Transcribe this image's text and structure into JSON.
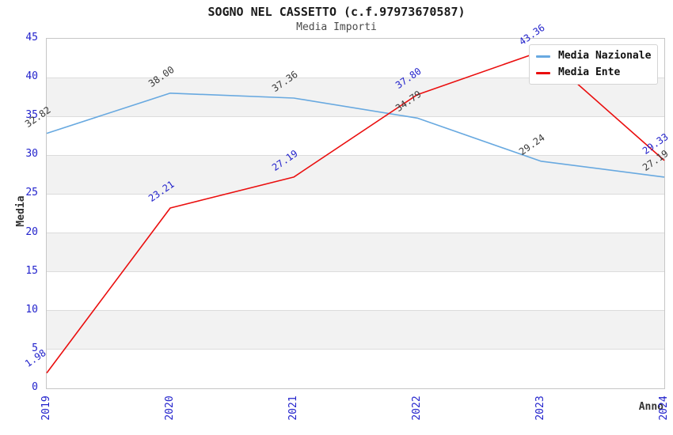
{
  "chart_data": {
    "type": "line",
    "title": "SOGNO NEL CASSETTO (c.f.97973670587)",
    "subtitle": "Media Importi",
    "xlabel": "Anno",
    "ylabel": "Media",
    "x": [
      2019,
      2020,
      2021,
      2022,
      2023,
      2024
    ],
    "series": [
      {
        "name": "Media Nazionale",
        "color": "#68a9e0",
        "label_color": "#3a3a3a",
        "values": [
          32.82,
          38.0,
          37.36,
          34.79,
          29.24,
          27.19
        ]
      },
      {
        "name": "Media Ente",
        "color": "#ea0e0e",
        "label_color": "#2323cb",
        "values": [
          1.98,
          23.21,
          27.19,
          37.8,
          43.36,
          29.33
        ]
      }
    ],
    "ylim": [
      0,
      45
    ],
    "ytick_step": 5,
    "yticks": [
      0,
      5,
      10,
      15,
      20,
      25,
      30,
      35,
      40,
      45
    ],
    "grid": "horizontal",
    "bands": true,
    "legend_position": "top-right",
    "style": {
      "tick_text_color": "#2222cc",
      "title_color": "#1a1a1a",
      "subtitle_color": "#4a4a4a",
      "axis_label_color": "#333333",
      "band_color": "#f2f2f2",
      "band_alt_color": "#ffffff",
      "grid_color": "#dcdcdc",
      "spine_color": "#c6c6c6"
    }
  }
}
